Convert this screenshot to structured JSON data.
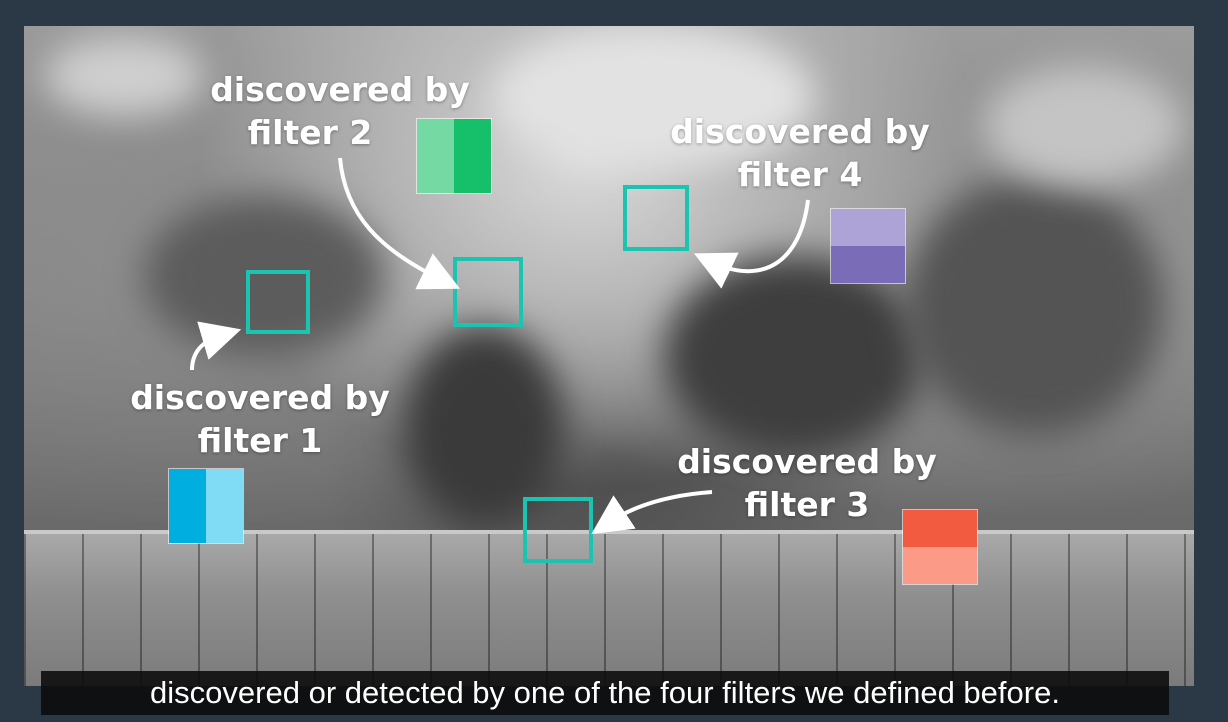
{
  "labels": {
    "filter1": {
      "line1": "discovered by",
      "line2": "filter 1"
    },
    "filter2": {
      "line1": "discovered by",
      "line2": "filter 2"
    },
    "filter3": {
      "line1": "discovered by",
      "line2": "filter 3"
    },
    "filter4": {
      "line1": "discovered by",
      "line2": "filter 4"
    }
  },
  "colors": {
    "box_outline": "#1bc4b1",
    "filter1": [
      "#00aee0",
      "#7fdcf4"
    ],
    "filter2": [
      "#74d9a3",
      "#16c06a"
    ],
    "filter3": [
      "#f25b3f",
      "#fb9a86"
    ],
    "filter4": [
      "#ada3d6",
      "#7b6cb8"
    ]
  },
  "caption": "discovered or detected by one of the four filters we defined before."
}
